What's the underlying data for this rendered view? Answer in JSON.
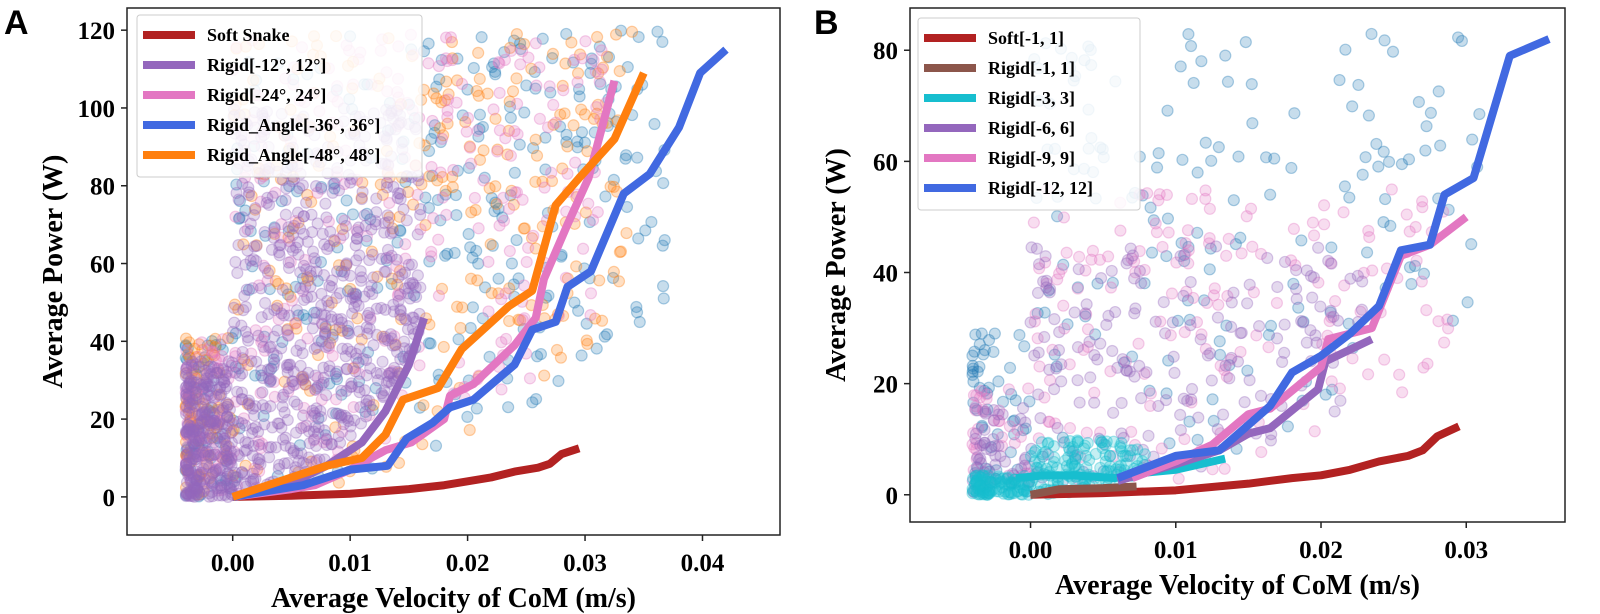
{
  "chart_data": [
    {
      "type": "line",
      "panel_label": "A",
      "xlabel": "Average Velocity of CoM (m/s)",
      "ylabel": "Average Power (W)",
      "xlim": [
        -0.009,
        0.0466
      ],
      "ylim": [
        -9.8,
        125.7
      ],
      "xticks": [
        0.0,
        0.01,
        0.02,
        0.03,
        0.04
      ],
      "xtick_labels": [
        "0.00",
        "0.01",
        "0.02",
        "0.03",
        "0.04"
      ],
      "yticks": [
        0,
        20,
        40,
        60,
        80,
        100,
        120
      ],
      "ytick_labels": [
        "0",
        "20",
        "40",
        "60",
        "80",
        "100",
        "120"
      ],
      "grid": false,
      "legend_position": "top-left",
      "scatter": [
        {
          "color": "#1f77b4",
          "xmax": 0.037,
          "ymax": 120
        },
        {
          "color": "#ff7f0e",
          "xmax": 0.034,
          "ymax": 120
        },
        {
          "color": "#e377c2",
          "xmax": 0.032,
          "ymax": 120
        },
        {
          "color": "#9467bd",
          "xmax": 0.016,
          "ymax": 100
        }
      ],
      "series": [
        {
          "name": "Soft Snake",
          "color": "#b22222",
          "x": [
            0,
            0.005,
            0.01,
            0.015,
            0.018,
            0.02,
            0.022,
            0.024,
            0.026,
            0.027,
            0.028,
            0.0295
          ],
          "y": [
            0,
            0.3,
            0.8,
            2,
            3,
            4,
            5,
            6.5,
            7.5,
            8.5,
            11,
            12.5
          ]
        },
        {
          "name": "Rigid[-12°, 12°]",
          "color": "#9467bd",
          "x": [
            0,
            0.004,
            0.008,
            0.011,
            0.013,
            0.015,
            0.0163
          ],
          "y": [
            0,
            2,
            8,
            14,
            22,
            34,
            46
          ]
        },
        {
          "name": "Rigid[-24°, 24°]",
          "color": "#e377c2",
          "x": [
            0,
            0.005,
            0.007,
            0.01,
            0.013,
            0.0152,
            0.018,
            0.0185,
            0.0205,
            0.024,
            0.0258,
            0.0265,
            0.0285,
            0.0303,
            0.0325
          ],
          "y": [
            0,
            2,
            3,
            7,
            12,
            14,
            20,
            26,
            29,
            39,
            46,
            56,
            70,
            82,
            107
          ]
        },
        {
          "name": "Rigid_Angle[-36°, 36°]",
          "color": "#4169e1",
          "x": [
            0,
            0.006,
            0.01,
            0.0132,
            0.0148,
            0.017,
            0.0185,
            0.0205,
            0.024,
            0.0255,
            0.0275,
            0.0285,
            0.0305,
            0.0333,
            0.0355,
            0.038,
            0.0398,
            0.042
          ],
          "y": [
            0,
            3,
            7,
            8,
            15,
            19,
            23,
            25,
            34,
            43,
            45,
            54,
            58,
            78,
            83,
            95,
            109,
            115
          ]
        },
        {
          "name": "Rigid_Angle[-48°, 48°]",
          "color": "#ff7f0e",
          "x": [
            0,
            0.008,
            0.011,
            0.013,
            0.0145,
            0.0175,
            0.0195,
            0.0235,
            0.0255,
            0.0275,
            0.0295,
            0.0325,
            0.035
          ],
          "y": [
            0,
            8,
            10,
            16,
            25,
            28,
            38,
            49,
            53,
            75,
            82,
            92,
            109
          ]
        }
      ]
    },
    {
      "type": "line",
      "panel_label": "B",
      "xlabel": "Average Velocity of CoM (m/s)",
      "ylabel": "Average Power (W)",
      "xlim": [
        -0.0083,
        0.0368
      ],
      "ylim": [
        -4.9,
        87.6
      ],
      "xticks": [
        0.0,
        0.01,
        0.02,
        0.03
      ],
      "xtick_labels": [
        "0.00",
        "0.01",
        "0.02",
        "0.03"
      ],
      "yticks": [
        0,
        20,
        40,
        60,
        80
      ],
      "ytick_labels": [
        "0",
        "20",
        "40",
        "60",
        "80"
      ],
      "grid": false,
      "legend_position": "top-left",
      "scatter": [
        {
          "color": "#1f77b4",
          "xmax": 0.031,
          "ymax": 83
        },
        {
          "color": "#e377c2",
          "xmax": 0.029,
          "ymax": 55
        },
        {
          "color": "#9467bd",
          "xmax": 0.023,
          "ymax": 45
        },
        {
          "color": "#17becf",
          "xmax": 0.008,
          "ymax": 10
        }
      ],
      "series": [
        {
          "name": "Soft[-1, 1]",
          "color": "#b22222",
          "x": [
            0,
            0.005,
            0.01,
            0.015,
            0.018,
            0.02,
            0.022,
            0.024,
            0.026,
            0.027,
            0.028,
            0.0295
          ],
          "y": [
            0,
            0.3,
            0.8,
            2,
            3,
            3.5,
            4.5,
            6,
            7,
            8,
            10.5,
            12.3
          ]
        },
        {
          "name": "Rigid[-1, 1]",
          "color": "#8c564b",
          "x": [
            0,
            0.002,
            0.005,
            0.0073
          ],
          "y": [
            0,
            1,
            1.2,
            1.5
          ]
        },
        {
          "name": "Rigid[-3, 3]",
          "color": "#17becf",
          "x": [
            -0.001,
            0.001,
            0.003,
            0.0058,
            0.008,
            0.01,
            0.0134
          ],
          "y": [
            3,
            3.5,
            3.5,
            3,
            4,
            4.5,
            6.5
          ]
        },
        {
          "name": "Rigid[-6, 6]",
          "color": "#9467bd",
          "x": [
            0.006,
            0.01,
            0.013,
            0.015,
            0.0165,
            0.0198,
            0.0203,
            0.0235
          ],
          "y": [
            2.5,
            5.5,
            8,
            11,
            12,
            19,
            24,
            28
          ]
        },
        {
          "name": "Rigid[-9, 9]",
          "color": "#e377c2",
          "x": [
            0.007,
            0.01,
            0.0125,
            0.015,
            0.0165,
            0.02,
            0.0205,
            0.0235,
            0.0255,
            0.0275,
            0.03
          ],
          "y": [
            3,
            6,
            9,
            14.5,
            15.5,
            23,
            28,
            30,
            43,
            45,
            50
          ]
        },
        {
          "name": "Rigid[-12, 12]",
          "color": "#4169e1",
          "x": [
            0.006,
            0.01,
            0.013,
            0.0165,
            0.018,
            0.02,
            0.022,
            0.024,
            0.0255,
            0.0275,
            0.0285,
            0.0305,
            0.033,
            0.0357
          ],
          "y": [
            3,
            7,
            8,
            16,
            22,
            25,
            29,
            34,
            44,
            45,
            54,
            57,
            79,
            82
          ]
        }
      ]
    }
  ]
}
